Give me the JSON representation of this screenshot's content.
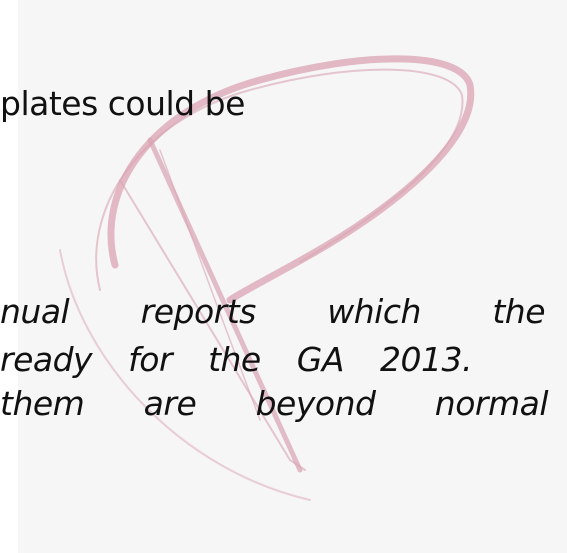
{
  "text_lines": [
    "plates could be",
    "nual reports which the",
    "ready for the GA 2013.",
    "them are beyond normal"
  ]
}
